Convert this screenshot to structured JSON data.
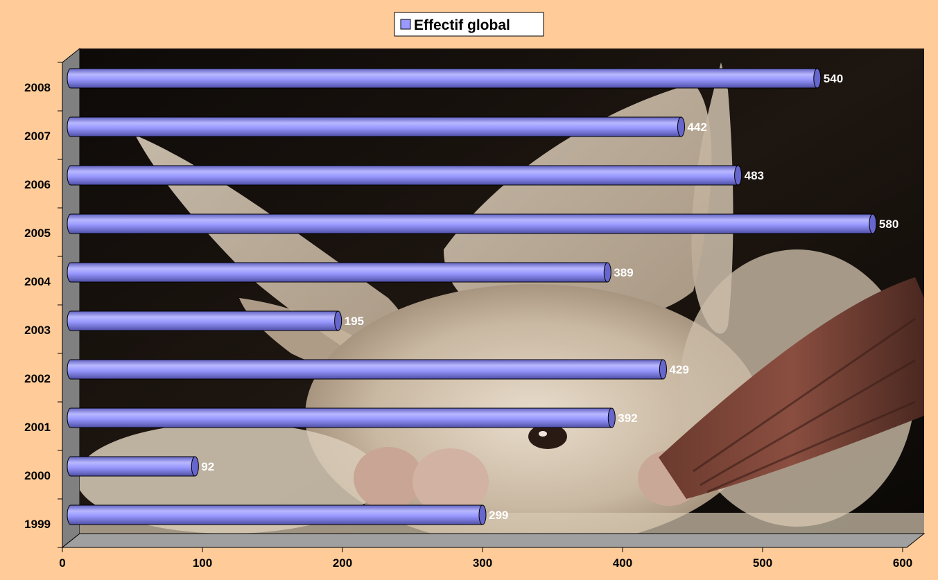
{
  "chart_data": {
    "type": "bar",
    "orientation": "horizontal",
    "categories": [
      "1999",
      "2000",
      "2001",
      "2002",
      "2003",
      "2004",
      "2005",
      "2006",
      "2007",
      "2008"
    ],
    "series": [
      {
        "name": "Effectif global",
        "values": [
          299,
          92,
          392,
          429,
          195,
          389,
          580,
          483,
          442,
          540
        ]
      }
    ],
    "xlim": [
      0,
      600
    ],
    "x_ticks": [
      "0",
      "100",
      "200",
      "300",
      "400",
      "500",
      "600"
    ],
    "legend_position": "top",
    "grid": false,
    "style_3d": true,
    "plot_background": "photograph of a long-eared bat",
    "colors": {
      "page_background": "#FFCC99",
      "bar_fill": "#9999FF",
      "bar_end": "#6666CC",
      "bar_outline": "#000000",
      "legend_background": "#FFFFFF",
      "axis_wall": "#808080",
      "axis_floor": "#A0A0A0"
    }
  }
}
